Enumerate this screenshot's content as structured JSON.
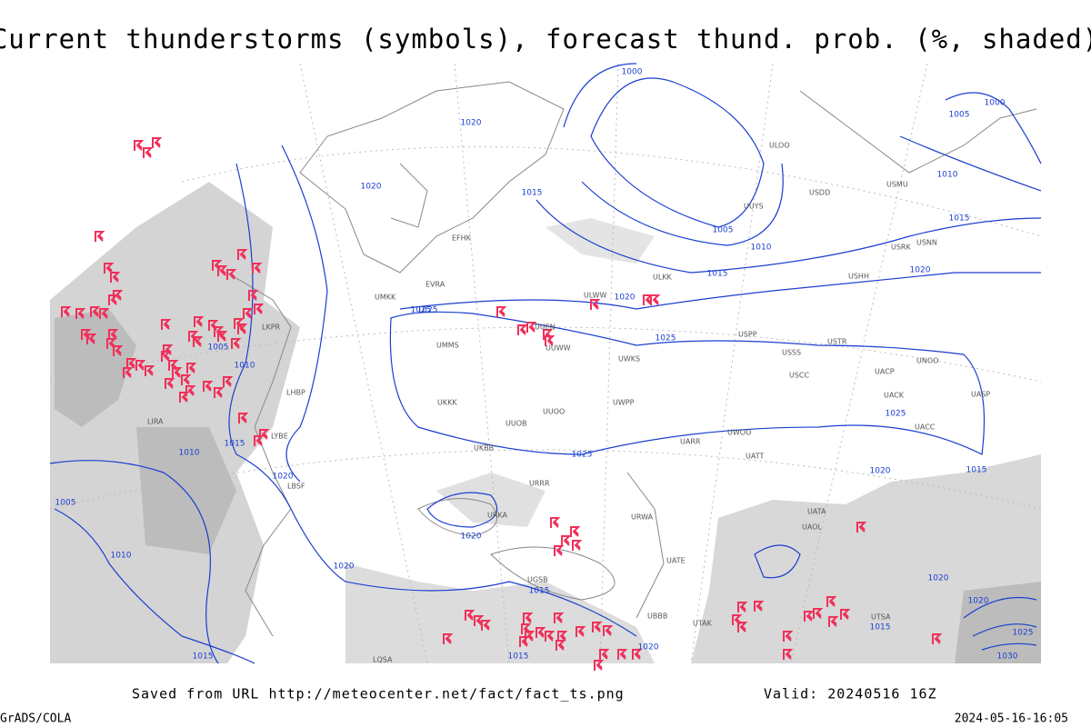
{
  "header": {
    "title": "Current thunderstorms (symbols), forecast thund. prob. (%, shaded)"
  },
  "map": {
    "isobar_labels": [
      "1000",
      "1020",
      "1015",
      "1020",
      "1005",
      "1010",
      "1015",
      "1020",
      "1025",
      "1025",
      "1005",
      "1010",
      "1015",
      "1010",
      "1025",
      "1020",
      "1025",
      "1020",
      "1015",
      "1020",
      "1005",
      "1010",
      "1015",
      "1020",
      "1015",
      "1015",
      "1020",
      "1020",
      "1015",
      "1025",
      "1030",
      "1000",
      "1005",
      "1010",
      "1015",
      "1020",
      "1025",
      "1020"
    ],
    "station_labels": [
      "ULOO",
      "UUYS",
      "USDD",
      "USMU",
      "USRK",
      "USNN",
      "USHH",
      "ULKK",
      "ULWW",
      "UUWW",
      "UWKS",
      "USPP",
      "USSS",
      "USTR",
      "UNOO",
      "USCC",
      "UACP",
      "UACK",
      "UASP",
      "UACC",
      "UAOL",
      "UATA",
      "UATE",
      "URWA",
      "URRR",
      "URKA",
      "UGSB",
      "UBBB",
      "UTAK",
      "UTSA",
      "UUEN",
      "UMMS",
      "UMKK",
      "EVRA",
      "EFHK",
      "LKPR",
      "LHBP",
      "LIRA",
      "LYBE",
      "LBSF",
      "LQSA",
      "UKKK",
      "UKBB",
      "UUOB",
      "UUOO",
      "UWPP",
      "UARR",
      "UWOO",
      "UATT"
    ]
  },
  "footer": {
    "source": "Saved from URL http://meteocenter.net/fact/fact_ts.png",
    "valid": "Valid: 20240516 16Z",
    "credit": "GrADS/COLA",
    "timestamp": "2024-05-16-16:05"
  }
}
